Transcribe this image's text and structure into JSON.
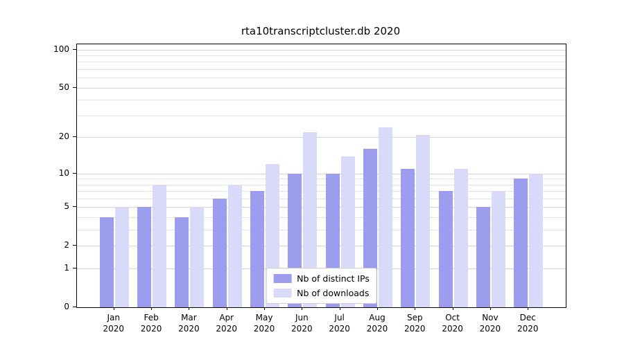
{
  "title": "rta10transcriptcluster.db 2020",
  "chart_data": {
    "type": "bar",
    "title": "rta10transcriptcluster.db 2020",
    "xlabel": "",
    "ylabel": "",
    "scale": "symlog (position proportional to log10(1+value))",
    "ylim": [
      0,
      110
    ],
    "y_ticks": [
      0,
      1,
      2,
      5,
      10,
      20,
      50,
      100
    ],
    "minor_gridlines": [
      3,
      4,
      6,
      7,
      8,
      9,
      30,
      40,
      60,
      70,
      80,
      90
    ],
    "grid": true,
    "legend_position": "lower center",
    "categories": [
      "Jan 2020",
      "Feb 2020",
      "Mar 2020",
      "Apr 2020",
      "May 2020",
      "Jun 2020",
      "Jul 2020",
      "Aug 2020",
      "Sep 2020",
      "Oct 2020",
      "Nov 2020",
      "Dec 2020"
    ],
    "series": [
      {
        "name": "Nb of distinct IPs",
        "color": "#9d9def",
        "values": [
          4,
          5,
          4,
          6,
          7,
          10,
          10,
          16,
          11,
          7,
          5,
          9
        ]
      },
      {
        "name": "Nb of downloads",
        "color": "#d9d9f9",
        "values": [
          5,
          8,
          5,
          8,
          12,
          22,
          14,
          24,
          21,
          11,
          7,
          10
        ]
      }
    ]
  },
  "colors": {
    "background": "#ffffff",
    "spine": "#000000",
    "grid_major": "#d4d4d4",
    "grid_minor": "#e2e2e2",
    "legend_border": "#cccccc"
  }
}
